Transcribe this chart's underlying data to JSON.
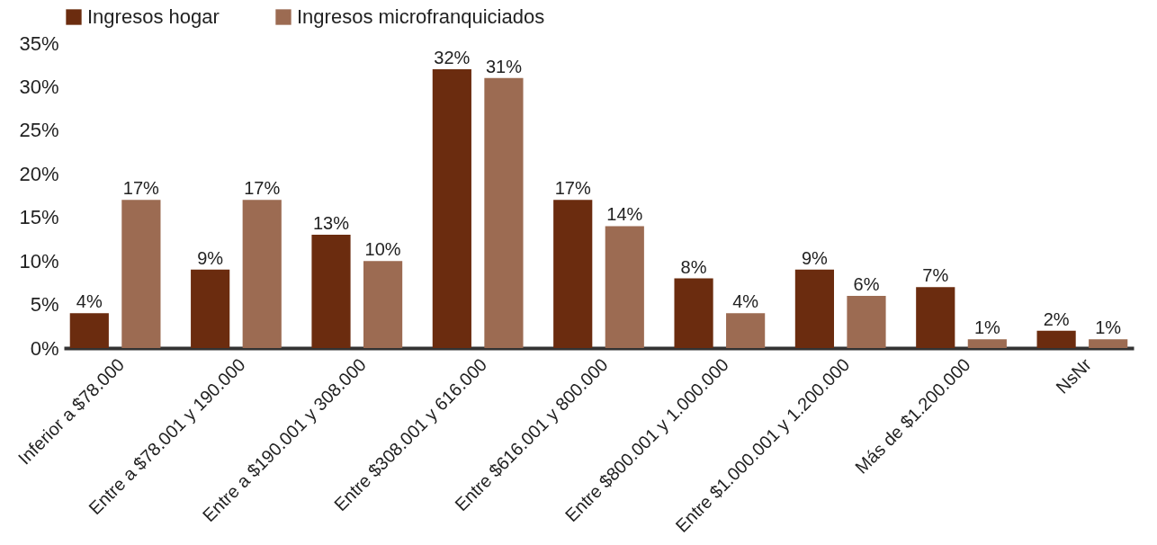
{
  "chart_data": {
    "type": "bar",
    "categories": [
      "Inferior a $78.000",
      "Entre a $78.001 y 190.000",
      "Entre a $190.001 y 308.000",
      "Entre $308.001 y 616.000",
      "Entre $616.001 y 800.000",
      "Entre $800.001 y 1.000.000",
      "Entre $1.000.001 y 1.200.000",
      "Más de $1.200.000",
      "NsNr"
    ],
    "series": [
      {
        "name": "Ingresos hogar",
        "color": "#6b2c0f",
        "values": [
          4,
          9,
          13,
          32,
          17,
          8,
          9,
          7,
          2
        ],
        "value_labels": [
          "4%",
          "9%",
          "13%",
          "32%",
          "17%",
          "8%",
          "9%",
          "7%",
          "2%"
        ]
      },
      {
        "name": "Ingresos microfranquiciados",
        "color": "#9c6b52",
        "values": [
          17,
          17,
          10,
          31,
          14,
          4,
          6,
          1,
          1
        ],
        "value_labels": [
          "17%",
          "17%",
          "10%",
          "31%",
          "14%",
          "4%",
          "6%",
          "1%",
          "1%"
        ]
      }
    ],
    "ylim": [
      0,
      35
    ],
    "yticks": [
      {
        "value": 0,
        "label": "0%"
      },
      {
        "value": 5,
        "label": "5%"
      },
      {
        "value": 10,
        "label": "10%"
      },
      {
        "value": 15,
        "label": "15%"
      },
      {
        "value": 20,
        "label": "20%"
      },
      {
        "value": 25,
        "label": "25%"
      },
      {
        "value": 30,
        "label": "30%"
      },
      {
        "value": 35,
        "label": "35%"
      }
    ],
    "legend": "top",
    "grid": false
  }
}
